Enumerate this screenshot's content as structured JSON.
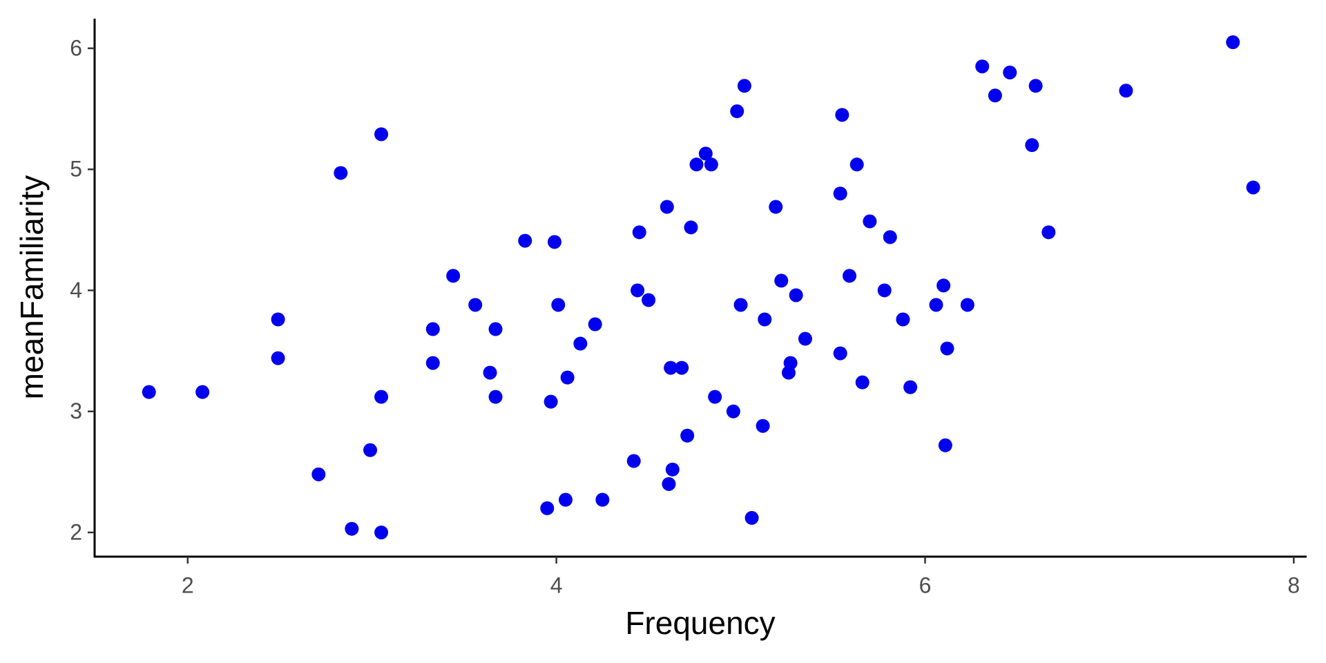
{
  "chart_data": {
    "type": "scatter",
    "x_label": "Frequency",
    "y_label": "meanFamiliarity",
    "color": "#0000ee",
    "xlim": [
      1.495,
      8.07
    ],
    "ylim": [
      1.8,
      6.245
    ],
    "xticks": [
      2,
      4,
      6,
      8
    ],
    "yticks": [
      2,
      3,
      4,
      5,
      6
    ],
    "grid": false,
    "x": [
      1.79,
      2.08,
      2.49,
      2.49,
      2.71,
      2.83,
      2.89,
      2.99,
      3.05,
      3.05,
      3.05,
      3.33,
      3.33,
      3.44,
      3.56,
      3.64,
      3.67,
      3.67,
      3.83,
      3.95,
      3.97,
      3.99,
      4.01,
      4.05,
      4.06,
      4.13,
      4.21,
      4.25,
      4.42,
      4.44,
      4.45,
      4.5,
      4.6,
      4.61,
      4.62,
      4.63,
      4.68,
      4.71,
      4.73,
      4.76,
      4.81,
      4.84,
      4.86,
      4.96,
      4.98,
      5.0,
      5.02,
      5.06,
      5.12,
      5.13,
      5.19,
      5.22,
      5.26,
      5.27,
      5.3,
      5.35,
      5.54,
      5.54,
      5.55,
      5.59,
      5.63,
      5.66,
      5.7,
      5.78,
      5.81,
      5.88,
      5.92,
      6.06,
      6.1,
      6.11,
      6.12,
      6.23,
      6.31,
      6.38,
      6.46,
      6.58,
      6.6,
      6.67,
      7.09,
      7.67,
      7.78
    ],
    "values": [
      3.16,
      3.16,
      3.76,
      3.44,
      2.48,
      4.97,
      2.03,
      2.68,
      5.29,
      3.12,
      2.0,
      3.68,
      3.4,
      4.12,
      3.88,
      3.32,
      3.68,
      3.12,
      4.41,
      2.2,
      3.08,
      4.4,
      3.88,
      2.27,
      3.28,
      3.56,
      3.72,
      2.27,
      2.59,
      4.0,
      4.48,
      3.92,
      4.69,
      2.4,
      3.36,
      2.52,
      3.36,
      2.8,
      4.52,
      5.04,
      5.13,
      5.04,
      3.12,
      3.0,
      5.48,
      3.88,
      5.69,
      2.12,
      2.88,
      3.76,
      4.69,
      4.08,
      3.32,
      3.4,
      3.96,
      3.6,
      3.48,
      4.8,
      5.45,
      4.12,
      5.04,
      3.24,
      4.57,
      4.0,
      4.44,
      3.76,
      3.2,
      3.88,
      4.04,
      2.72,
      3.52,
      3.88,
      5.85,
      5.61,
      5.8,
      5.2,
      5.69,
      4.48,
      5.65,
      6.05,
      4.85
    ]
  }
}
